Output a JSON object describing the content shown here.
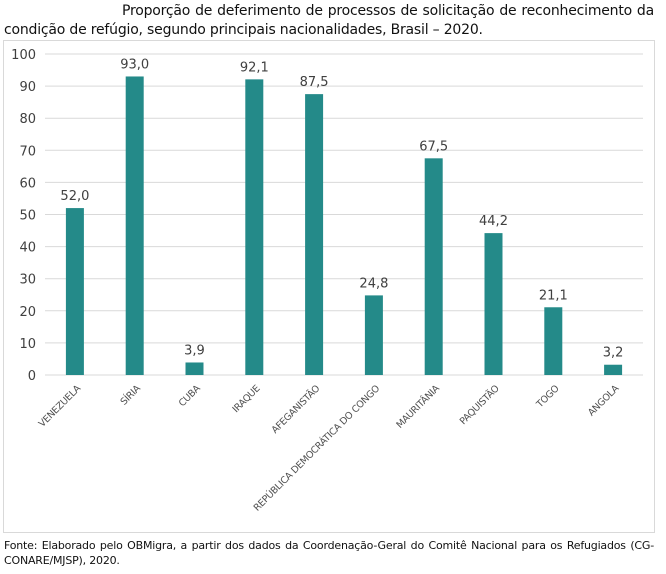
{
  "title": "Proporção de deferimento de processos de solicitação de reconhecimento da condição de refúgio, segundo principais nacionalidades, Brasil – 2020.",
  "footer": "Fonte: Elaborado pelo OBMigra, a partir dos dados da Coordenação-Geral do Comitê Nacional para os Refugiados (CG-CONARE/MJSP), 2020.",
  "chart_data": {
    "type": "bar",
    "title": "Proporção de deferimento de processos de solicitação de reconhecimento da condição de refúgio, segundo principais nacionalidades, Brasil – 2020.",
    "categories": [
      "VENEZUELA",
      "SÍRIA",
      "CUBA",
      "IRAQUE",
      "AFEGANISTÃO",
      "REPÚBLICA DEMOCRÁTICA DO CONGO",
      "MAURITÂNIA",
      "PAQUISTÃO",
      "TOGO",
      "ANGOLA"
    ],
    "values": [
      52.0,
      93.0,
      3.9,
      92.1,
      87.5,
      24.8,
      67.5,
      44.2,
      21.1,
      3.2
    ],
    "data_labels": [
      "52,0",
      "93,0",
      "3,9",
      "92,1",
      "87,5",
      "24,8",
      "67,5",
      "44,2",
      "21,1",
      "3,2"
    ],
    "yticks": [
      "0",
      "10",
      "20",
      "30",
      "40",
      "50",
      "60",
      "70",
      "80",
      "90",
      "100"
    ],
    "ylim": [
      0,
      100
    ],
    "xlabel": "",
    "ylabel": "",
    "grid": true,
    "legend": "none",
    "bar_color": "#248a89"
  }
}
